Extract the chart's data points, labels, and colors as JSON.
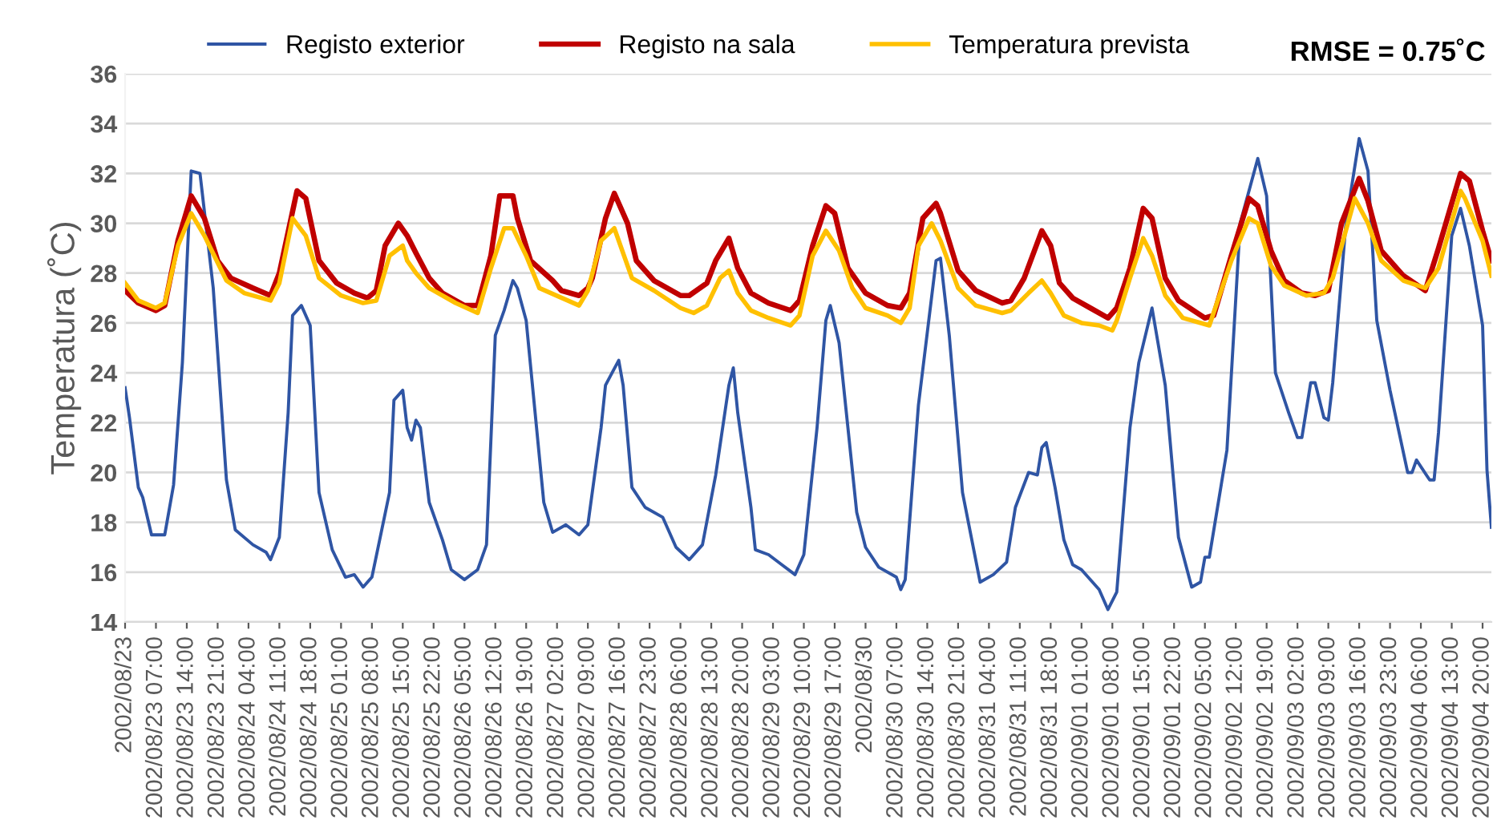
{
  "chart_data": {
    "type": "line",
    "ylabel": "Temperatura (˚C)",
    "annotations": [
      "RMSE = 0.75˚C"
    ],
    "xlim": [
      "2002-08-23T00:00",
      "2002-09-04T22:00"
    ],
    "ylim": [
      14,
      36
    ],
    "yticks": [
      14,
      16,
      18,
      20,
      22,
      24,
      26,
      28,
      30,
      32,
      34,
      36
    ],
    "xticks": [
      {
        "value": "2002-08-23T00:00",
        "label": "2002/08/23"
      },
      {
        "value": "2002-08-23T07:00",
        "label": "2002/08/23 07:00"
      },
      {
        "value": "2002-08-23T14:00",
        "label": "2002/08/23 14:00"
      },
      {
        "value": "2002-08-23T21:00",
        "label": "2002/08/23 21:00"
      },
      {
        "value": "2002-08-24T04:00",
        "label": "2002/08/24 04:00"
      },
      {
        "value": "2002-08-24T11:00",
        "label": "2002/08/24 11:00"
      },
      {
        "value": "2002-08-24T18:00",
        "label": "2002/08/24 18:00"
      },
      {
        "value": "2002-08-25T01:00",
        "label": "2002/08/25 01:00"
      },
      {
        "value": "2002-08-25T08:00",
        "label": "2002/08/25 08:00"
      },
      {
        "value": "2002-08-25T15:00",
        "label": "2002/08/25 15:00"
      },
      {
        "value": "2002-08-25T22:00",
        "label": "2002/08/25 22:00"
      },
      {
        "value": "2002-08-26T05:00",
        "label": "2002/08/26 05:00"
      },
      {
        "value": "2002-08-26T12:00",
        "label": "2002/08/26 12:00"
      },
      {
        "value": "2002-08-26T19:00",
        "label": "2002/08/26 19:00"
      },
      {
        "value": "2002-08-27T02:00",
        "label": "2002/08/27 02:00"
      },
      {
        "value": "2002-08-27T09:00",
        "label": "2002/08/27 09:00"
      },
      {
        "value": "2002-08-27T16:00",
        "label": "2002/08/27 16:00"
      },
      {
        "value": "2002-08-27T23:00",
        "label": "2002/08/27 23:00"
      },
      {
        "value": "2002-08-28T06:00",
        "label": "2002/08/28 06:00"
      },
      {
        "value": "2002-08-28T13:00",
        "label": "2002/08/28 13:00"
      },
      {
        "value": "2002-08-28T20:00",
        "label": "2002/08/28 20:00"
      },
      {
        "value": "2002-08-29T03:00",
        "label": "2002/08/29 03:00"
      },
      {
        "value": "2002-08-29T10:00",
        "label": "2002/08/29 10:00"
      },
      {
        "value": "2002-08-29T17:00",
        "label": "2002/08/29 17:00"
      },
      {
        "value": "2002-08-30T00:00",
        "label": "2002/08/30"
      },
      {
        "value": "2002-08-30T07:00",
        "label": "2002/08/30 07:00"
      },
      {
        "value": "2002-08-30T14:00",
        "label": "2002/08/30 14:00"
      },
      {
        "value": "2002-08-30T21:00",
        "label": "2002/08/30 21:00"
      },
      {
        "value": "2002-08-31T04:00",
        "label": "2002/08/31 04:00"
      },
      {
        "value": "2002-08-31T11:00",
        "label": "2002/08/31 11:00"
      },
      {
        "value": "2002-08-31T18:00",
        "label": "2002/08/31 18:00"
      },
      {
        "value": "2002-09-01T01:00",
        "label": "2002/09/01 01:00"
      },
      {
        "value": "2002-09-01T08:00",
        "label": "2002/09/01 08:00"
      },
      {
        "value": "2002-09-01T15:00",
        "label": "2002/09/01 15:00"
      },
      {
        "value": "2002-09-01T22:00",
        "label": "2002/09/01 22:00"
      },
      {
        "value": "2002-09-02T05:00",
        "label": "2002/09/02 05:00"
      },
      {
        "value": "2002-09-02T12:00",
        "label": "2002/09/02 12:00"
      },
      {
        "value": "2002-09-02T19:00",
        "label": "2002/09/02 19:00"
      },
      {
        "value": "2002-09-03T02:00",
        "label": "2002/09/03 02:00"
      },
      {
        "value": "2002-09-03T09:00",
        "label": "2002/09/03 09:00"
      },
      {
        "value": "2002-09-03T16:00",
        "label": "2002/09/03 16:00"
      },
      {
        "value": "2002-09-03T23:00",
        "label": "2002/09/03 23:00"
      },
      {
        "value": "2002-09-04T06:00",
        "label": "2002/09/04 06:00"
      },
      {
        "value": "2002-09-04T13:00",
        "label": "2002/09/04 13:00"
      },
      {
        "value": "2002-09-04T20:00",
        "label": "2002/09/04 20:00"
      }
    ],
    "grid": "y",
    "legend": "top",
    "marker": "none",
    "line_style": "solid",
    "series": [
      {
        "name": "Registo exterior",
        "color": "#2f55a4",
        "x": [
          "2002-08-23T00:00",
          "2002-08-23T01:00",
          "2002-08-23T03:00",
          "2002-08-23T04:00",
          "2002-08-23T06:00",
          "2002-08-23T09:00",
          "2002-08-23T11:00",
          "2002-08-23T13:00",
          "2002-08-23T15:00",
          "2002-08-23T17:00",
          "2002-08-23T20:00",
          "2002-08-23T23:00",
          "2002-08-24T01:00",
          "2002-08-24T05:00",
          "2002-08-24T08:00",
          "2002-08-24T09:00",
          "2002-08-24T11:00",
          "2002-08-24T13:00",
          "2002-08-24T14:00",
          "2002-08-24T16:00",
          "2002-08-24T18:00",
          "2002-08-24T20:00",
          "2002-08-24T23:00",
          "2002-08-25T02:00",
          "2002-08-25T04:00",
          "2002-08-25T06:00",
          "2002-08-25T08:00",
          "2002-08-25T12:00",
          "2002-08-25T13:00",
          "2002-08-25T15:00",
          "2002-08-25T16:00",
          "2002-08-25T17:00",
          "2002-08-25T18:00",
          "2002-08-25T19:00",
          "2002-08-25T21:00",
          "2002-08-26T00:00",
          "2002-08-26T02:00",
          "2002-08-26T05:00",
          "2002-08-26T08:00",
          "2002-08-26T10:00",
          "2002-08-26T12:00",
          "2002-08-26T14:00",
          "2002-08-26T16:00",
          "2002-08-26T17:00",
          "2002-08-26T19:00",
          "2002-08-26T23:00",
          "2002-08-27T01:00",
          "2002-08-27T04:00",
          "2002-08-27T07:00",
          "2002-08-27T09:00",
          "2002-08-27T12:00",
          "2002-08-27T13:00",
          "2002-08-27T16:00",
          "2002-08-27T17:00",
          "2002-08-27T19:00",
          "2002-08-27T22:00",
          "2002-08-28T02:00",
          "2002-08-28T05:00",
          "2002-08-28T08:00",
          "2002-08-28T11:00",
          "2002-08-28T14:00",
          "2002-08-28T17:00",
          "2002-08-28T18:00",
          "2002-08-28T19:00",
          "2002-08-28T22:00",
          "2002-08-28T23:00",
          "2002-08-29T02:00",
          "2002-08-29T05:00",
          "2002-08-29T08:00",
          "2002-08-29T10:00",
          "2002-08-29T13:00",
          "2002-08-29T15:00",
          "2002-08-29T16:00",
          "2002-08-29T18:00",
          "2002-08-29T22:00",
          "2002-08-30T00:00",
          "2002-08-30T03:00",
          "2002-08-30T07:00",
          "2002-08-30T08:00",
          "2002-08-30T09:00",
          "2002-08-30T12:00",
          "2002-08-30T16:00",
          "2002-08-30T17:00",
          "2002-08-30T19:00",
          "2002-08-30T22:00",
          "2002-08-31T02:00",
          "2002-08-31T05:00",
          "2002-08-31T08:00",
          "2002-08-31T10:00",
          "2002-08-31T13:00",
          "2002-08-31T15:00",
          "2002-08-31T16:00",
          "2002-08-31T17:00",
          "2002-08-31T19:00",
          "2002-08-31T21:00",
          "2002-08-31T23:00",
          "2002-09-01T01:00",
          "2002-09-01T05:00",
          "2002-09-01T07:00",
          "2002-09-01T09:00",
          "2002-09-01T12:00",
          "2002-09-01T14:00",
          "2002-09-01T17:00",
          "2002-09-01T20:00",
          "2002-09-01T23:00",
          "2002-09-02T02:00",
          "2002-09-02T04:00",
          "2002-09-02T05:00",
          "2002-09-02T06:00",
          "2002-09-02T10:00",
          "2002-09-02T13:00",
          "2002-09-02T17:00",
          "2002-09-02T19:00",
          "2002-09-02T21:00",
          "2002-09-03T00:00",
          "2002-09-03T02:00",
          "2002-09-03T03:00",
          "2002-09-03T05:00",
          "2002-09-03T06:00",
          "2002-09-03T08:00",
          "2002-09-03T09:00",
          "2002-09-03T10:00",
          "2002-09-03T13:00",
          "2002-09-03T16:00",
          "2002-09-03T18:00",
          "2002-09-03T20:00",
          "2002-09-03T23:00",
          "2002-09-04T03:00",
          "2002-09-04T04:00",
          "2002-09-04T05:00",
          "2002-09-04T08:00",
          "2002-09-04T09:00",
          "2002-09-04T10:00",
          "2002-09-04T13:00",
          "2002-09-04T15:00",
          "2002-09-04T17:00",
          "2002-09-04T20:00",
          "2002-09-04T21:00",
          "2002-09-04T22:00"
        ],
        "values": [
          23.4,
          22.2,
          19.4,
          19.0,
          17.5,
          17.5,
          19.5,
          24.4,
          32.1,
          32.0,
          27.4,
          19.7,
          17.7,
          17.1,
          16.8,
          16.5,
          17.4,
          22.4,
          26.3,
          26.7,
          25.9,
          19.2,
          16.9,
          15.8,
          15.9,
          15.4,
          15.8,
          19.2,
          22.9,
          23.3,
          21.8,
          21.3,
          22.1,
          21.8,
          18.8,
          17.3,
          16.1,
          15.7,
          16.1,
          17.1,
          25.5,
          26.5,
          27.7,
          27.4,
          26.1,
          18.8,
          17.6,
          17.9,
          17.5,
          17.9,
          21.8,
          23.5,
          24.5,
          23.5,
          19.4,
          18.6,
          18.2,
          17.0,
          16.5,
          17.1,
          19.9,
          23.5,
          24.2,
          22.4,
          18.6,
          16.9,
          16.7,
          16.3,
          15.9,
          16.7,
          21.8,
          26.1,
          26.7,
          25.2,
          18.4,
          17.0,
          16.2,
          15.8,
          15.3,
          15.7,
          22.7,
          28.5,
          28.6,
          25.5,
          19.2,
          15.6,
          15.9,
          16.4,
          18.6,
          20.0,
          19.9,
          21.0,
          21.2,
          19.4,
          17.3,
          16.3,
          16.1,
          15.3,
          14.5,
          15.2,
          21.8,
          24.4,
          26.6,
          23.5,
          17.4,
          15.4,
          15.6,
          16.6,
          16.6,
          20.9,
          30.0,
          32.6,
          31.1,
          24.0,
          22.4,
          21.4,
          21.4,
          23.6,
          23.6,
          22.2,
          22.1,
          23.6,
          30.0,
          33.4,
          32.1,
          26.1,
          23.3,
          20.0,
          20.0,
          20.5,
          19.7,
          19.7,
          21.6,
          29.5,
          30.6,
          29.1,
          25.9,
          20.1,
          17.8
        ]
      },
      {
        "name": "Registo na sala",
        "color": "#c00000",
        "x": [
          "2002-08-23T00:00",
          "2002-08-23T03:00",
          "2002-08-23T07:00",
          "2002-08-23T09:00",
          "2002-08-23T12:00",
          "2002-08-23T15:00",
          "2002-08-23T18:00",
          "2002-08-23T21:00",
          "2002-08-24T00:00",
          "2002-08-24T05:00",
          "2002-08-24T09:00",
          "2002-08-24T11:00",
          "2002-08-24T15:00",
          "2002-08-24T17:00",
          "2002-08-24T20:00",
          "2002-08-25T00:00",
          "2002-08-25T04:00",
          "2002-08-25T07:00",
          "2002-08-25T09:00",
          "2002-08-25T11:00",
          "2002-08-25T14:00",
          "2002-08-25T16:00",
          "2002-08-25T18:00",
          "2002-08-25T21:00",
          "2002-08-26T00:00",
          "2002-08-26T05:00",
          "2002-08-26T08:00",
          "2002-08-26T11:00",
          "2002-08-26T13:00",
          "2002-08-26T16:00",
          "2002-08-26T17:00",
          "2002-08-26T20:00",
          "2002-08-27T01:00",
          "2002-08-27T03:00",
          "2002-08-27T07:00",
          "2002-08-27T09:00",
          "2002-08-27T10:00",
          "2002-08-27T13:00",
          "2002-08-27T15:00",
          "2002-08-27T18:00",
          "2002-08-27T20:00",
          "2002-08-28T00:00",
          "2002-08-28T06:00",
          "2002-08-28T08:00",
          "2002-08-28T12:00",
          "2002-08-28T14:00",
          "2002-08-28T17:00",
          "2002-08-28T19:00",
          "2002-08-28T22:00",
          "2002-08-29T02:00",
          "2002-08-29T07:00",
          "2002-08-29T09:00",
          "2002-08-29T12:00",
          "2002-08-29T15:00",
          "2002-08-29T17:00",
          "2002-08-29T20:00",
          "2002-08-30T00:00",
          "2002-08-30T05:00",
          "2002-08-30T08:00",
          "2002-08-30T10:00",
          "2002-08-30T13:00",
          "2002-08-30T16:00",
          "2002-08-30T17:00",
          "2002-08-30T21:00",
          "2002-08-31T01:00",
          "2002-08-31T07:00",
          "2002-08-31T09:00",
          "2002-08-31T12:00",
          "2002-08-31T16:00",
          "2002-08-31T18:00",
          "2002-08-31T20:00",
          "2002-08-31T23:00",
          "2002-09-01T03:00",
          "2002-09-01T07:00",
          "2002-09-01T09:00",
          "2002-09-01T12:00",
          "2002-09-01T15:00",
          "2002-09-01T17:00",
          "2002-09-01T20:00",
          "2002-09-01T23:00",
          "2002-09-02T05:00",
          "2002-09-02T07:00",
          "2002-09-02T11:00",
          "2002-09-02T15:00",
          "2002-09-02T17:00",
          "2002-09-02T20:00",
          "2002-09-02T23:00",
          "2002-09-03T03:00",
          "2002-09-03T06:00",
          "2002-09-03T09:00",
          "2002-09-03T12:00",
          "2002-09-03T16:00",
          "2002-09-03T18:00",
          "2002-09-03T21:00",
          "2002-09-04T02:00",
          "2002-09-04T07:00",
          "2002-09-04T10:00",
          "2002-09-04T15:00",
          "2002-09-04T17:00",
          "2002-09-04T20:00",
          "2002-09-04T22:00"
        ],
        "values": [
          27.3,
          26.8,
          26.5,
          26.7,
          29.3,
          31.1,
          30.2,
          28.5,
          27.8,
          27.4,
          27.1,
          28.0,
          31.3,
          31.0,
          28.5,
          27.6,
          27.2,
          27.0,
          27.3,
          29.1,
          30.0,
          29.5,
          28.8,
          27.8,
          27.2,
          26.7,
          26.7,
          28.7,
          31.1,
          31.1,
          30.2,
          28.5,
          27.7,
          27.3,
          27.1,
          27.4,
          27.8,
          30.2,
          31.2,
          30.0,
          28.5,
          27.7,
          27.1,
          27.1,
          27.6,
          28.5,
          29.4,
          28.2,
          27.2,
          26.8,
          26.5,
          26.9,
          29.1,
          30.7,
          30.4,
          28.2,
          27.2,
          26.7,
          26.6,
          27.2,
          30.2,
          30.8,
          30.4,
          28.1,
          27.3,
          26.8,
          26.9,
          27.8,
          29.7,
          29.1,
          27.6,
          27.0,
          26.6,
          26.2,
          26.6,
          28.2,
          30.6,
          30.2,
          27.8,
          26.9,
          26.2,
          26.3,
          28.7,
          31.0,
          30.7,
          28.9,
          27.7,
          27.2,
          27.1,
          27.3,
          30.0,
          31.8,
          30.9,
          28.9,
          27.9,
          27.3,
          29.0,
          32.0,
          31.7,
          29.7,
          28.5
        ]
      },
      {
        "name": "Temperatura prevista",
        "color": "#ffc000",
        "x": [
          "2002-08-23T00:00",
          "2002-08-23T03:00",
          "2002-08-23T07:00",
          "2002-08-23T09:00",
          "2002-08-23T12:00",
          "2002-08-23T15:00",
          "2002-08-23T18:00",
          "2002-08-23T23:00",
          "2002-08-24T03:00",
          "2002-08-24T09:00",
          "2002-08-24T11:00",
          "2002-08-24T14:00",
          "2002-08-24T17:00",
          "2002-08-24T20:00",
          "2002-08-25T01:00",
          "2002-08-25T06:00",
          "2002-08-25T09:00",
          "2002-08-25T12:00",
          "2002-08-25T15:00",
          "2002-08-25T16:00",
          "2002-08-25T18:00",
          "2002-08-25T21:00",
          "2002-08-26T03:00",
          "2002-08-26T08:00",
          "2002-08-26T11:00",
          "2002-08-26T14:00",
          "2002-08-26T16:00",
          "2002-08-26T19:00",
          "2002-08-26T22:00",
          "2002-08-27T07:00",
          "2002-08-27T09:00",
          "2002-08-27T12:00",
          "2002-08-27T15:00",
          "2002-08-27T19:00",
          "2002-08-28T00:00",
          "2002-08-28T06:00",
          "2002-08-28T09:00",
          "2002-08-28T12:00",
          "2002-08-28T15:00",
          "2002-08-28T17:00",
          "2002-08-28T19:00",
          "2002-08-28T22:00",
          "2002-08-29T02:00",
          "2002-08-29T07:00",
          "2002-08-29T09:00",
          "2002-08-29T12:00",
          "2002-08-29T15:00",
          "2002-08-29T18:00",
          "2002-08-29T21:00",
          "2002-08-30T00:00",
          "2002-08-30T05:00",
          "2002-08-30T08:00",
          "2002-08-30T10:00",
          "2002-08-30T12:00",
          "2002-08-30T15:00",
          "2002-08-30T17:00",
          "2002-08-30T21:00",
          "2002-08-31T01:00",
          "2002-08-31T07:00",
          "2002-08-31T09:00",
          "2002-08-31T13:00",
          "2002-08-31T16:00",
          "2002-08-31T18:00",
          "2002-08-31T21:00",
          "2002-09-01T01:00",
          "2002-09-01T05:00",
          "2002-09-01T08:00",
          "2002-09-01T09:00",
          "2002-09-01T12:00",
          "2002-09-01T15:00",
          "2002-09-01T17:00",
          "2002-09-01T20:00",
          "2002-09-02T00:00",
          "2002-09-02T06:00",
          "2002-09-02T11:00",
          "2002-09-02T15:00",
          "2002-09-02T17:00",
          "2002-09-02T20:00",
          "2002-09-02T23:00",
          "2002-09-03T04:00",
          "2002-09-03T08:00",
          "2002-09-03T10:00",
          "2002-09-03T15:00",
          "2002-09-03T18:00",
          "2002-09-03T21:00",
          "2002-09-04T02:00",
          "2002-09-04T07:00",
          "2002-09-04T10:00",
          "2002-09-04T15:00",
          "2002-09-04T16:00",
          "2002-09-04T20:00",
          "2002-09-04T22:00"
        ],
        "values": [
          27.6,
          26.9,
          26.6,
          26.8,
          29.1,
          30.4,
          29.5,
          27.7,
          27.2,
          26.9,
          27.6,
          30.2,
          29.5,
          27.8,
          27.1,
          26.8,
          26.9,
          28.7,
          29.1,
          28.5,
          28.0,
          27.4,
          26.8,
          26.4,
          28.2,
          29.8,
          29.8,
          28.7,
          27.4,
          26.7,
          27.3,
          29.3,
          29.8,
          27.8,
          27.3,
          26.6,
          26.4,
          26.7,
          27.8,
          28.1,
          27.2,
          26.5,
          26.2,
          25.9,
          26.3,
          28.7,
          29.7,
          28.9,
          27.4,
          26.6,
          26.3,
          26.0,
          26.6,
          29.1,
          30.0,
          29.3,
          27.4,
          26.7,
          26.4,
          26.5,
          27.2,
          27.7,
          27.2,
          26.3,
          26.0,
          25.9,
          25.7,
          26.1,
          27.8,
          29.4,
          28.7,
          27.1,
          26.2,
          25.9,
          28.5,
          30.2,
          30.0,
          28.3,
          27.5,
          27.1,
          27.2,
          27.8,
          31.0,
          30.0,
          28.5,
          27.7,
          27.4,
          28.2,
          31.3,
          31.0,
          29.3,
          27.9
        ]
      }
    ]
  }
}
